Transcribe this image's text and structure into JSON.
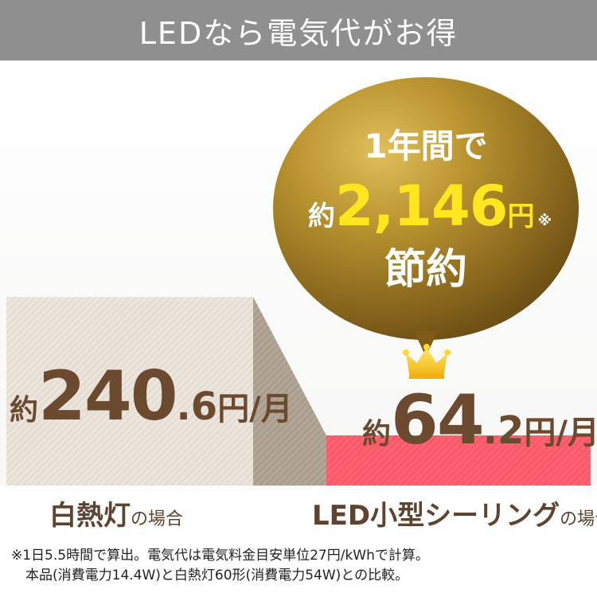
{
  "header": {
    "title": "LEDなら電気代がお得"
  },
  "chart_data": {
    "type": "bar",
    "categories": [
      "白熱灯",
      "LED小型シーリング"
    ],
    "values": [
      240.6,
      64.2
    ],
    "unit": "円/月",
    "bars": [
      {
        "category": "白熱灯",
        "category_suffix": "の場合",
        "value": 240.6,
        "prefix": "約",
        "int_text": "240",
        "dec_text": ".6",
        "unit_text": "円/月"
      },
      {
        "category": "LED小型シーリング",
        "category_suffix": "の場合",
        "value": 64.2,
        "prefix": "約",
        "int_text": "64",
        "dec_text": ".2",
        "unit_text": "円/月"
      }
    ],
    "colors": {
      "incandescent": "#ece6df",
      "led": "#ff5e6c",
      "bubble": "#b08a2a",
      "value_text": "#6b4a2f"
    },
    "callout": {
      "line1": "1年間で",
      "prefix": "約",
      "amount": "2,146",
      "unit": "円",
      "mark": "※",
      "line3": "節約"
    }
  },
  "icons": {
    "crown": "crown-icon"
  },
  "footnote": {
    "line1": "※1日5.5時間で算出。電気代は電気料金目安単位27円/kWhで計算。",
    "line2": "本品(消費電力14.4W)と白熱灯60形(消費電力54W)との比較。"
  }
}
